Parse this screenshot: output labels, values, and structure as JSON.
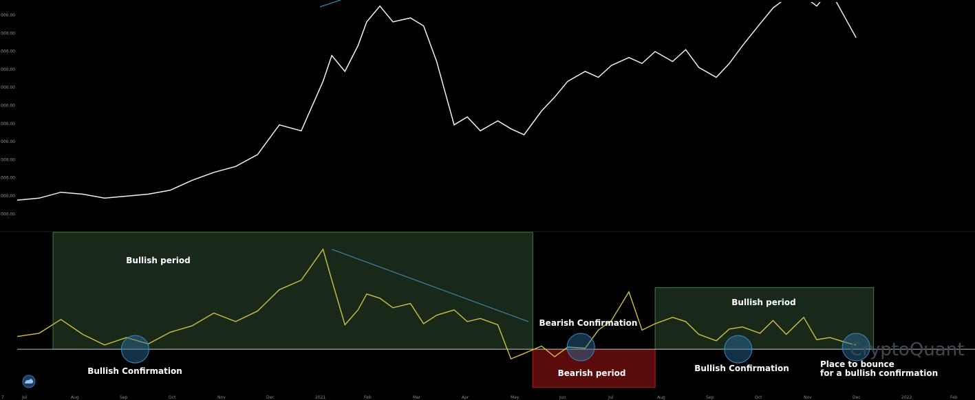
{
  "chart_data": [
    {
      "type": "line",
      "y_tick_labels": [
        "000.00",
        "000.00",
        "000.00",
        "000.00",
        "000.00",
        "000.00",
        "000.00",
        "000.00",
        "000.00",
        "000.00",
        "000.00",
        "000.00"
      ],
      "x_tick_labels": [
        "7",
        "Jul",
        "Aug",
        "Sep",
        "Oct",
        "Nov",
        "Dec",
        "2021",
        "Feb",
        "Mar",
        "Apr",
        "May",
        "Jun",
        "Jul",
        "Aug",
        "Sep",
        "Oct",
        "Nov",
        "Dec",
        "2022",
        "Feb"
      ],
      "series": [
        {
          "color": "#f2f2f2",
          "x": [
            0,
            0.5,
            1,
            1.5,
            2,
            2.5,
            3,
            3.5,
            4,
            4.5,
            5,
            5.5,
            6,
            6.5,
            7,
            7.2,
            7.5,
            7.8,
            8,
            8.3,
            8.6,
            9,
            9.3,
            9.6,
            10,
            10.3,
            10.6,
            11,
            11.3,
            11.6,
            12,
            12.3,
            12.6,
            13,
            13.3,
            13.6,
            14,
            14.3,
            14.6,
            15,
            15.3,
            15.6,
            16,
            16.3,
            16.6,
            17,
            17.3,
            17.6,
            18,
            18.3,
            18.6,
            19,
            19.2
          ],
          "values": [
            10,
            11,
            14,
            13,
            11,
            12,
            13,
            15,
            20,
            24,
            27,
            33,
            48,
            45,
            70,
            83,
            75,
            88,
            100,
            108,
            100,
            102,
            98,
            80,
            48,
            52,
            45,
            50,
            46,
            43,
            55,
            62,
            70,
            75,
            72,
            78,
            82,
            79,
            85,
            80,
            86,
            77,
            72,
            79,
            88,
            99,
            107,
            112,
            113,
            108,
            116,
            100,
            92
          ],
          "ylim": [
            0,
            110
          ]
        },
        {
          "color": "#d4c23c",
          "x": [
            0,
            0.5,
            1,
            1.5,
            2,
            2.5,
            3,
            3.5,
            4,
            4.5,
            5,
            5.5,
            6,
            6.5,
            7,
            7.2,
            7.5,
            7.8,
            8,
            8.3,
            8.6,
            9,
            9.3,
            9.6,
            10,
            10.3,
            10.6,
            11,
            11.3,
            11.6,
            12,
            12.3,
            12.6,
            13,
            13.3,
            13.6,
            14,
            14.3,
            14.6,
            15,
            15.3,
            15.6,
            16,
            16.3,
            16.6,
            17,
            17.3,
            17.6,
            18,
            18.3,
            18.6,
            19,
            19.2
          ],
          "values": [
            1.2,
            1.5,
            2.8,
            1.4,
            0.4,
            1.1,
            0.5,
            1.6,
            2.2,
            3.4,
            2.6,
            3.6,
            5.6,
            6.5,
            9.4,
            6.5,
            2.3,
            3.7,
            5.2,
            4.8,
            3.9,
            4.3,
            2.4,
            3.2,
            3.7,
            2.6,
            2.9,
            2.3,
            -0.9,
            -0.4,
            0.3,
            -0.7,
            0.2,
            0.1,
            1.8,
            2.7,
            5.4,
            1.8,
            2.4,
            3.0,
            2.6,
            1.4,
            0.8,
            1.9,
            2.1,
            1.5,
            2.7,
            1.4,
            3.0,
            0.9,
            1.1,
            0.6,
            0.4
          ],
          "ylim": [
            -4,
            11
          ]
        }
      ],
      "annotations": {
        "bullish_period_1": "Bullish period",
        "bullish_period_2": "Bullish period",
        "bearish_period": "Bearish period",
        "bullish_confirmation_1": "Bullish Confirmation",
        "bullish_confirmation_2": "Bullish Confirmation",
        "bearish_confirmation": "Bearish Confirmation",
        "place_to_bounce_line1": "Place to bounce",
        "place_to_bounce_line2": "for a bullish confirmation"
      },
      "watermark": "CryptoQuant",
      "colors": {
        "background": "#000000",
        "price_line": "#f2f2f2",
        "indicator_line": "#d4c23c",
        "bullish_fill": "#18291a",
        "bullish_border": "#3f7a3f",
        "bearish_fill": "#5a0c0c",
        "bearish_border": "#b01e1e",
        "trend_line": "#3a86b0",
        "circle": "#2a6fa0"
      },
      "grid": false
    }
  ]
}
